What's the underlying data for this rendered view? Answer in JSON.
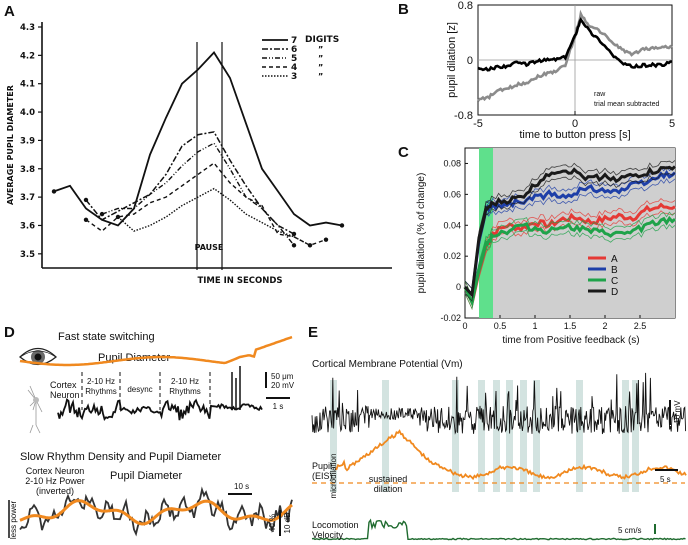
{
  "panel_labels": {
    "a": "A",
    "b": "B",
    "c": "C",
    "d": "D",
    "e": "E"
  },
  "chart_data": [
    {
      "panel": "A",
      "type": "line",
      "title": "",
      "xlabel": "TIME IN SECONDS",
      "ylabel": "AVERAGE PUPIL DIAMETER",
      "xlim": [
        0,
        20
      ],
      "ylim": [
        3.45,
        4.3
      ],
      "y_ticks": [
        "4.3",
        "4.2",
        "4.1",
        "4.0",
        "3.9",
        "3.8",
        "3.7",
        "3.6",
        "3.5"
      ],
      "y_tick_values": [
        4.3,
        4.2,
        4.1,
        4.0,
        3.9,
        3.8,
        3.7,
        3.6,
        3.5
      ],
      "annotation": "PAUSE",
      "legend_title": "DIGITS",
      "series": [
        {
          "name": "7",
          "dash": "none",
          "width": 1.8,
          "values": [
            [
              0,
              3.72
            ],
            [
              1,
              3.74
            ],
            [
              2,
              3.66
            ],
            [
              3,
              3.62
            ],
            [
              4,
              3.6
            ],
            [
              5,
              3.66
            ],
            [
              6,
              3.85
            ],
            [
              7,
              3.98
            ],
            [
              8,
              4.1
            ],
            [
              9,
              4.15
            ],
            [
              10,
              4.21
            ],
            [
              11,
              4.12
            ],
            [
              12,
              3.96
            ],
            [
              13,
              3.8
            ],
            [
              14,
              3.72
            ],
            [
              15,
              3.64
            ],
            [
              16,
              3.6
            ],
            [
              17,
              3.61
            ],
            [
              18,
              3.6
            ]
          ]
        },
        {
          "name": "6",
          "dash": "6,2,2,2",
          "width": 1.5,
          "values": [
            [
              2,
              3.69
            ],
            [
              3,
              3.62
            ],
            [
              4,
              3.65
            ],
            [
              5,
              3.68
            ],
            [
              6,
              3.71
            ],
            [
              7,
              3.78
            ],
            [
              8,
              3.88
            ],
            [
              9,
              3.92
            ],
            [
              10,
              3.93
            ],
            [
              11,
              3.83
            ],
            [
              12,
              3.74
            ],
            [
              13,
              3.66
            ],
            [
              14,
              3.6
            ],
            [
              15,
              3.57
            ]
          ]
        },
        {
          "name": "5",
          "dash": "5,2,1,2,1,2",
          "width": 1.4,
          "values": [
            [
              3,
              3.64
            ],
            [
              4,
              3.66
            ],
            [
              5,
              3.66
            ],
            [
              6,
              3.71
            ],
            [
              7,
              3.75
            ],
            [
              8,
              3.81
            ],
            [
              9,
              3.86
            ],
            [
              10,
              3.89
            ],
            [
              11,
              3.8
            ],
            [
              12,
              3.7
            ],
            [
              13,
              3.66
            ],
            [
              14,
              3.6
            ],
            [
              15,
              3.53
            ]
          ]
        },
        {
          "name": "4",
          "dash": "4,3",
          "width": 1.4,
          "values": [
            [
              2,
              3.62
            ],
            [
              3,
              3.58
            ],
            [
              4,
              3.63
            ],
            [
              5,
              3.64
            ],
            [
              6,
              3.68
            ],
            [
              7,
              3.7
            ],
            [
              8,
              3.74
            ],
            [
              9,
              3.78
            ],
            [
              10,
              3.82
            ],
            [
              11,
              3.75
            ],
            [
              12,
              3.7
            ],
            [
              13,
              3.67
            ],
            [
              14,
              3.57
            ],
            [
              15,
              3.56
            ],
            [
              16,
              3.53
            ],
            [
              17,
              3.55
            ]
          ]
        },
        {
          "name": "3",
          "dash": "1.5,1.5",
          "width": 1.4,
          "values": [
            [
              4,
              3.63
            ],
            [
              5,
              3.58
            ],
            [
              6,
              3.6
            ],
            [
              7,
              3.63
            ],
            [
              8,
              3.67
            ],
            [
              9,
              3.7
            ],
            [
              10,
              3.73
            ],
            [
              11,
              3.69
            ],
            [
              12,
              3.64
            ],
            [
              13,
              3.61
            ],
            [
              14,
              3.58
            ],
            [
              15,
              3.56
            ],
            [
              16,
              3.53
            ]
          ]
        }
      ]
    },
    {
      "panel": "B",
      "type": "line",
      "xlabel": "time to button press [s]",
      "ylabel": "pupil dilation [z]",
      "xlim": [
        -5,
        5
      ],
      "ylim": [
        -0.8,
        0.8
      ],
      "x_ticks": [
        "-5",
        "0",
        "5"
      ],
      "y_ticks": [
        "0.8",
        "0",
        "-0.8"
      ],
      "series": [
        {
          "name": "raw",
          "color": "#8c8c8c",
          "values": [
            [
              -5,
              -0.58
            ],
            [
              -4.5,
              -0.55
            ],
            [
              -4,
              -0.45
            ],
            [
              -3.5,
              -0.42
            ],
            [
              -3,
              -0.36
            ],
            [
              -2.5,
              -0.33
            ],
            [
              -2,
              -0.25
            ],
            [
              -1.5,
              -0.2
            ],
            [
              -1,
              -0.16
            ],
            [
              -0.5,
              -0.08
            ],
            [
              0,
              0.35
            ],
            [
              0.3,
              0.66
            ],
            [
              0.8,
              0.48
            ],
            [
              1.3,
              0.42
            ],
            [
              2,
              0.24
            ],
            [
              2.5,
              0.14
            ],
            [
              3,
              0.08
            ],
            [
              3.5,
              0.16
            ],
            [
              4,
              0.17
            ],
            [
              4.5,
              0.19
            ],
            [
              5,
              0.18
            ]
          ]
        },
        {
          "name": "trial mean subtracted",
          "color": "#000000",
          "values": [
            [
              -5,
              -0.12
            ],
            [
              -4.5,
              -0.14
            ],
            [
              -4,
              -0.1
            ],
            [
              -3.5,
              -0.09
            ],
            [
              -3,
              -0.04
            ],
            [
              -2.5,
              -0.06
            ],
            [
              -2,
              -0.02
            ],
            [
              -1.5,
              0.0
            ],
            [
              -1,
              0.01
            ],
            [
              -0.5,
              0.04
            ],
            [
              0,
              0.35
            ],
            [
              0.3,
              0.6
            ],
            [
              0.8,
              0.4
            ],
            [
              1.3,
              0.28
            ],
            [
              2,
              0.06
            ],
            [
              2.5,
              -0.06
            ],
            [
              3,
              -0.1
            ],
            [
              3.5,
              -0.08
            ],
            [
              4,
              -0.07
            ],
            [
              4.5,
              -0.08
            ],
            [
              5,
              -0.02
            ]
          ]
        }
      ]
    },
    {
      "panel": "C",
      "type": "line",
      "xlabel": "time from Positive feedback (s)",
      "ylabel": "pupil dilation (% of change)",
      "xlim": [
        0,
        3
      ],
      "ylim": [
        -0.02,
        0.09
      ],
      "x_ticks": [
        "0",
        "0.5",
        "1",
        "1.5",
        "2",
        "2.5"
      ],
      "x_tick_values": [
        0,
        0.5,
        1,
        1.5,
        2,
        2.5
      ],
      "y_ticks": [
        "0.08",
        "0.06",
        "0.04",
        "0.02",
        "0",
        "-0.02"
      ],
      "y_tick_values": [
        0.08,
        0.06,
        0.04,
        0.02,
        0,
        -0.02
      ],
      "shading": {
        "green_band": [
          0.2,
          0.4
        ],
        "gray_from": 0.4
      },
      "series": [
        {
          "name": "A",
          "color": "#e53935",
          "values": [
            [
              0,
              0.0
            ],
            [
              0.1,
              -0.01
            ],
            [
              0.2,
              0.01
            ],
            [
              0.3,
              0.026
            ],
            [
              0.4,
              0.035
            ],
            [
              0.6,
              0.04
            ],
            [
              0.8,
              0.038
            ],
            [
              1.0,
              0.042
            ],
            [
              1.2,
              0.04
            ],
            [
              1.4,
              0.044
            ],
            [
              1.6,
              0.045
            ],
            [
              1.8,
              0.042
            ],
            [
              2.0,
              0.044
            ],
            [
              2.2,
              0.046
            ],
            [
              2.4,
              0.045
            ],
            [
              2.6,
              0.05
            ],
            [
              2.8,
              0.052
            ],
            [
              3.0,
              0.052
            ]
          ]
        },
        {
          "name": "B",
          "color": "#1e3fa8",
          "values": [
            [
              0,
              0.0
            ],
            [
              0.1,
              -0.005
            ],
            [
              0.2,
              0.03
            ],
            [
              0.3,
              0.05
            ],
            [
              0.4,
              0.052
            ],
            [
              0.6,
              0.054
            ],
            [
              0.8,
              0.055
            ],
            [
              1.0,
              0.058
            ],
            [
              1.2,
              0.06
            ],
            [
              1.4,
              0.058
            ],
            [
              1.6,
              0.062
            ],
            [
              1.8,
              0.064
            ],
            [
              2.0,
              0.063
            ],
            [
              2.2,
              0.062
            ],
            [
              2.4,
              0.066
            ],
            [
              2.6,
              0.068
            ],
            [
              2.8,
              0.072
            ],
            [
              3.0,
              0.074
            ]
          ]
        },
        {
          "name": "C",
          "color": "#1fa34a",
          "values": [
            [
              0,
              0.0
            ],
            [
              0.1,
              -0.01
            ],
            [
              0.2,
              0.012
            ],
            [
              0.3,
              0.028
            ],
            [
              0.4,
              0.034
            ],
            [
              0.6,
              0.036
            ],
            [
              0.8,
              0.04
            ],
            [
              1.0,
              0.038
            ],
            [
              1.2,
              0.036
            ],
            [
              1.4,
              0.04
            ],
            [
              1.6,
              0.038
            ],
            [
              1.8,
              0.036
            ],
            [
              2.0,
              0.035
            ],
            [
              2.2,
              0.034
            ],
            [
              2.4,
              0.036
            ],
            [
              2.6,
              0.04
            ],
            [
              2.8,
              0.042
            ],
            [
              3.0,
              0.044
            ]
          ]
        },
        {
          "name": "D",
          "color": "#1a1a1a",
          "values": [
            [
              0,
              0.0
            ],
            [
              0.1,
              -0.005
            ],
            [
              0.2,
              0.032
            ],
            [
              0.3,
              0.05
            ],
            [
              0.4,
              0.054
            ],
            [
              0.6,
              0.056
            ],
            [
              0.8,
              0.058
            ],
            [
              1.0,
              0.066
            ],
            [
              1.2,
              0.074
            ],
            [
              1.4,
              0.076
            ],
            [
              1.6,
              0.074
            ],
            [
              1.8,
              0.07
            ],
            [
              2.0,
              0.072
            ],
            [
              2.2,
              0.07
            ],
            [
              2.4,
              0.072
            ],
            [
              2.6,
              0.074
            ],
            [
              2.8,
              0.076
            ],
            [
              3.0,
              0.078
            ]
          ]
        }
      ]
    }
  ],
  "panel_d": {
    "title_top": "Fast state switching",
    "pupil_label": "Pupil Diameter",
    "neuron_label_1": "Cortex",
    "neuron_label_2": "Neuron",
    "seg1_1": "2-10 Hz",
    "seg1_2": "Rhythms",
    "seg2": "desync",
    "seg3_1": "2-10 Hz",
    "seg3_2": "Rhythms",
    "scale_top_1": "50 μm",
    "scale_top_2": "20 mV",
    "scale_time": "1 s",
    "title_bottom": "Slow Rhythm Density and Pupil Diameter",
    "power_label_1": "Cortex Neuron",
    "power_label_2": "2-10 Hz Power",
    "power_label_3": "(inverted)",
    "pupil_label_bottom": "Pupil Diameter",
    "scale_time_bottom": "10 s",
    "less_power": "less power",
    "scale_pct": "40 %",
    "scale_db": "10 dB",
    "colors": {
      "pupil": "#f0891f",
      "trace": "#111111"
    }
  },
  "panel_e": {
    "title": "Cortical Membrane Potential (Vm)",
    "scale_mv": "10 mV",
    "scale_s": "5 s",
    "pupil_label_1": "Pupil",
    "pupil_label_2": "(EIS)",
    "microdilation": "microdilation",
    "sustained_1": "sustained",
    "sustained_2": "dilation",
    "loco_1": "Locomotion",
    "loco_2": "Velocity",
    "scale_cms": "5 cm/s",
    "colors": {
      "pupil": "#f0891f",
      "loco": "#1f6b2f",
      "band": "#d3e3e0"
    }
  }
}
